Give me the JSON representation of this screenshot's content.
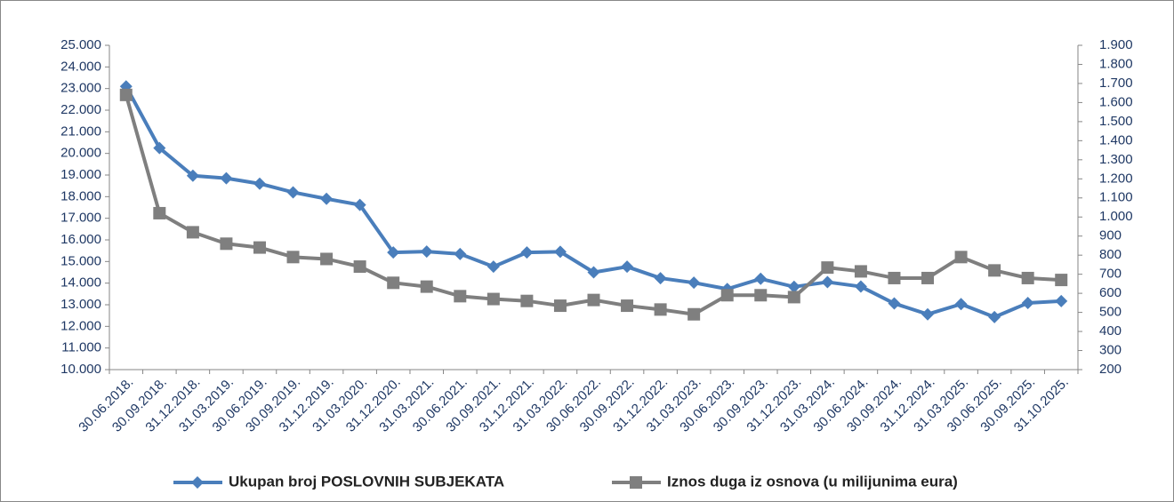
{
  "chart_data": {
    "type": "line",
    "categories": [
      "30.06.2018.",
      "30.09.2018.",
      "31.12.2018.",
      "31.03.2019.",
      "30.06.2019.",
      "30.09.2019.",
      "31.12.2019.",
      "31.03.2020.",
      "31.12.2020.",
      "31.03.2021.",
      "30.06.2021.",
      "30.09.2021.",
      "31.12.2021.",
      "31.03.2022.",
      "30.06.2022.",
      "30.09.2022.",
      "31.12.2022.",
      "31.03.2023.",
      "30.06.2023.",
      "30.09.2023.",
      "31.12.2023.",
      "31.03.2024.",
      "30.06.2024.",
      "30.09.2024.",
      "31.12.2024.",
      "31.03.2025.",
      "30.06.2025.",
      "30.09.2025.",
      "31.10.2025."
    ],
    "series": [
      {
        "name": "Ukupan broj POSLOVNIH SUBJEKATA",
        "color": "#4a7ebb",
        "marker": "diamond",
        "values": [
          23100,
          20250,
          18970,
          18850,
          18600,
          18200,
          17900,
          17620,
          15420,
          15460,
          15350,
          14760,
          15420,
          15450,
          14500,
          14760,
          14230,
          14020,
          13730,
          14200,
          13830,
          14050,
          13840,
          13060,
          12560,
          13030,
          12430,
          13080,
          13170
        ]
      },
      {
        "name": "Iznos duga iz osnova (u milijunima eura)",
        "color": "#7f7f7f",
        "marker": "square",
        "axis": "y2",
        "values": [
          1640,
          1020,
          920,
          860,
          840,
          790,
          780,
          740,
          655,
          635,
          585,
          570,
          560,
          535,
          565,
          535,
          515,
          490,
          590,
          590,
          580,
          735,
          715,
          680,
          680,
          790,
          720,
          680,
          670
        ]
      }
    ],
    "ylim": [
      10000,
      25000
    ],
    "yticks": [
      {
        "value": 10000,
        "label": "10.000"
      },
      {
        "value": 11000,
        "label": "11.000"
      },
      {
        "value": 12000,
        "label": "12.000"
      },
      {
        "value": 13000,
        "label": "13.000"
      },
      {
        "value": 14000,
        "label": "14.000"
      },
      {
        "value": 15000,
        "label": "15.000"
      },
      {
        "value": 16000,
        "label": "16.000"
      },
      {
        "value": 17000,
        "label": "17.000"
      },
      {
        "value": 18000,
        "label": "18.000"
      },
      {
        "value": 19000,
        "label": "19.000"
      },
      {
        "value": 20000,
        "label": "20.000"
      },
      {
        "value": 21000,
        "label": "21.000"
      },
      {
        "value": 22000,
        "label": "22.000"
      },
      {
        "value": 23000,
        "label": "23.000"
      },
      {
        "value": 24000,
        "label": "24.000"
      },
      {
        "value": 25000,
        "label": "25.000"
      }
    ],
    "y2lim": [
      200,
      1900
    ],
    "y2ticks": [
      200,
      300,
      400,
      500,
      600,
      700,
      800,
      900,
      {
        "value": 1000,
        "label": "1.000"
      },
      {
        "value": 1100,
        "label": "1.100"
      },
      {
        "value": 1200,
        "label": "1.200"
      },
      {
        "value": 1300,
        "label": "1.300"
      },
      {
        "value": 1400,
        "label": "1.400"
      },
      {
        "value": 1500,
        "label": "1.500"
      },
      {
        "value": 1600,
        "label": "1.600"
      },
      {
        "value": 1700,
        "label": "1.700"
      },
      {
        "value": 1800,
        "label": "1.800"
      },
      {
        "value": 1900,
        "label": "1.900"
      }
    ],
    "grid": false,
    "legend": "bottom"
  }
}
